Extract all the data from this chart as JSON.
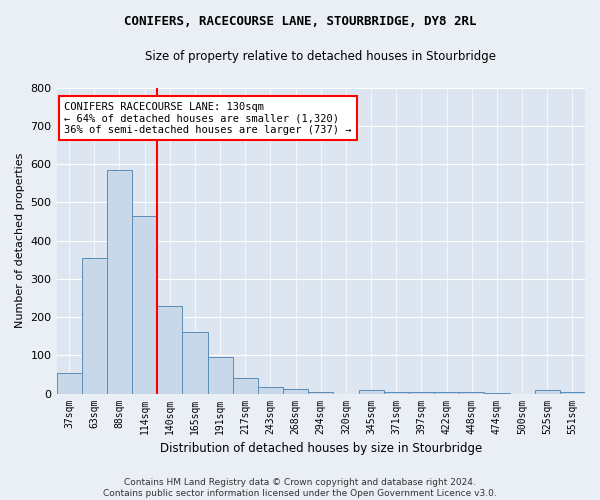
{
  "title": "CONIFERS, RACECOURSE LANE, STOURBRIDGE, DY8 2RL",
  "subtitle": "Size of property relative to detached houses in Stourbridge",
  "xlabel": "Distribution of detached houses by size in Stourbridge",
  "ylabel": "Number of detached properties",
  "categories": [
    "37sqm",
    "63sqm",
    "88sqm",
    "114sqm",
    "140sqm",
    "165sqm",
    "191sqm",
    "217sqm",
    "243sqm",
    "268sqm",
    "294sqm",
    "320sqm",
    "345sqm",
    "371sqm",
    "397sqm",
    "422sqm",
    "448sqm",
    "474sqm",
    "500sqm",
    "525sqm",
    "551sqm"
  ],
  "bar_values": [
    55,
    355,
    585,
    465,
    230,
    160,
    95,
    42,
    18,
    13,
    5,
    0,
    10,
    5,
    5,
    3,
    3,
    2,
    0,
    8,
    5
  ],
  "bar_color": "#c8d8e8",
  "bar_edgecolor": "#5b8db8",
  "vline_color": "red",
  "vline_pos": 3.5,
  "annotation_text": "CONIFERS RACECOURSE LANE: 130sqm\n← 64% of detached houses are smaller (1,320)\n36% of semi-detached houses are larger (737) →",
  "annotation_box_color": "white",
  "annotation_box_edgecolor": "red",
  "ylim": [
    0,
    800
  ],
  "yticks": [
    0,
    100,
    200,
    300,
    400,
    500,
    600,
    700,
    800
  ],
  "footer": "Contains HM Land Registry data © Crown copyright and database right 2024.\nContains public sector information licensed under the Open Government Licence v3.0.",
  "background_color": "#eaeff5",
  "plot_background": "#dde6f0",
  "grid_color": "white",
  "title_fontsize": 9,
  "subtitle_fontsize": 8.5
}
